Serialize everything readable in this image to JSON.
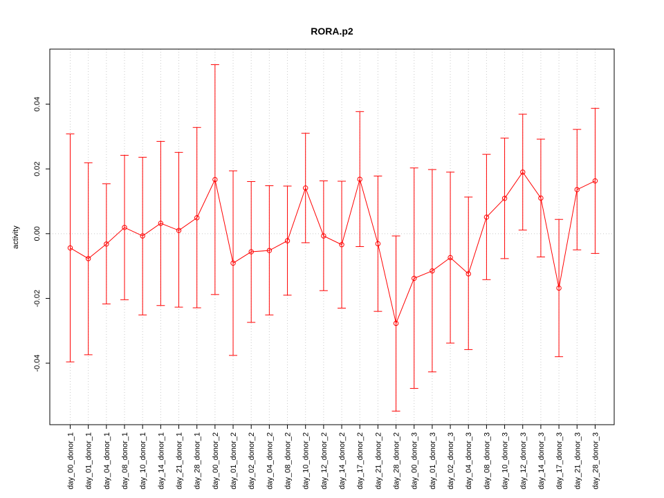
{
  "chart_data": {
    "type": "line",
    "title": "RORA.p2",
    "xlabel": "",
    "ylabel": "activity",
    "categories": [
      "day_00_donor_1",
      "day_01_donor_1",
      "day_04_donor_1",
      "day_08_donor_1",
      "day_10_donor_1",
      "day_14_donor_1",
      "day_21_donor_1",
      "day_28_donor_1",
      "day_00_donor_2",
      "day_01_donor_2",
      "day_02_donor_2",
      "day_04_donor_2",
      "day_08_donor_2",
      "day_10_donor_2",
      "day_12_donor_2",
      "day_14_donor_2",
      "day_17_donor_2",
      "day_21_donor_2",
      "day_28_donor_2",
      "day_00_donor_3",
      "day_01_donor_3",
      "day_02_donor_3",
      "day_04_donor_3",
      "day_08_donor_3",
      "day_10_donor_3",
      "day_12_donor_3",
      "day_14_donor_3",
      "day_17_donor_3",
      "day_21_donor_3",
      "day_28_donor_3"
    ],
    "series": [
      {
        "values": [
          -0.0044,
          -0.0077,
          -0.0032,
          0.0019,
          -0.0007,
          0.0032,
          0.001,
          0.0049,
          0.0167,
          -0.0091,
          -0.0056,
          -0.0052,
          -0.0022,
          0.0141,
          -0.0007,
          -0.0034,
          0.0168,
          -0.0031,
          -0.0277,
          -0.0138,
          -0.0115,
          -0.0074,
          -0.0124,
          0.0051,
          0.0109,
          0.019,
          0.011,
          -0.0168,
          0.0136,
          0.0163
        ],
        "upper": [
          0.0308,
          0.0219,
          0.0154,
          0.0242,
          0.0236,
          0.0285,
          0.0251,
          0.0328,
          0.0522,
          0.0194,
          0.0161,
          0.0148,
          0.0147,
          0.031,
          0.0163,
          0.0162,
          0.0377,
          0.0178,
          -0.0007,
          0.0203,
          0.0198,
          0.019,
          0.0113,
          0.0245,
          0.0295,
          0.0369,
          0.0292,
          0.0044,
          0.0322,
          0.0387
        ],
        "lower": [
          -0.0396,
          -0.0374,
          -0.0217,
          -0.0204,
          -0.0251,
          -0.0222,
          -0.0227,
          -0.0229,
          -0.0188,
          -0.0376,
          -0.0274,
          -0.0251,
          -0.019,
          -0.0028,
          -0.0176,
          -0.023,
          -0.004,
          -0.024,
          -0.0548,
          -0.0478,
          -0.0427,
          -0.0338,
          -0.0358,
          -0.0142,
          -0.0077,
          0.0011,
          -0.0072,
          -0.038,
          -0.005,
          -0.0061
        ]
      }
    ],
    "ylim": [
      -0.059,
      0.057
    ],
    "yticks": [
      -0.04,
      -0.02,
      0.0,
      0.02,
      0.04
    ],
    "ytick_labels": [
      "-0.04",
      "-0.02",
      "0.00",
      "0.02",
      "0.04"
    ],
    "grid": true,
    "color": "#ff0000",
    "grid_color": "#c8c8c8"
  }
}
